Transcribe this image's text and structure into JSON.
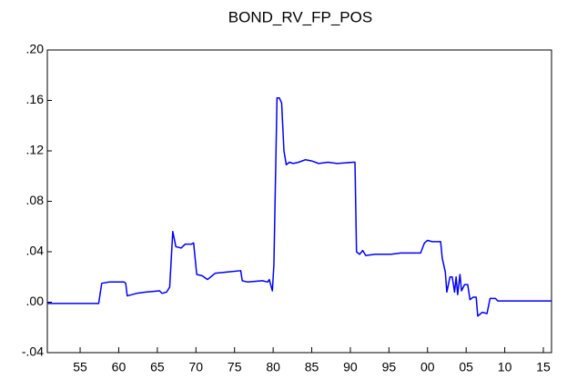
{
  "chart_data": {
    "type": "line",
    "title": "BOND_RV_FP_POS",
    "color": "#0000ff",
    "x": [
      1950.75,
      1957.4,
      1957.8,
      1958.8,
      1960.7,
      1960.9,
      1961.1,
      1962.3,
      1963.5,
      1965.3,
      1965.6,
      1966.2,
      1966.6,
      1967.0,
      1967.4,
      1968.1,
      1968.6,
      1969.4,
      1969.7,
      1970.1,
      1970.8,
      1971.5,
      1972.1,
      1972.5,
      1974.1,
      1975.8,
      1976.0,
      1976.7,
      1978.6,
      1979.3,
      1979.5,
      1979.9,
      1980.1,
      1980.5,
      1980.8,
      1981.1,
      1981.4,
      1981.7,
      1982.1,
      1982.6,
      1983.3,
      1984.2,
      1985.0,
      1985.9,
      1987.1,
      1988.3,
      1990.4,
      1990.6,
      1990.8,
      1991.2,
      1991.6,
      1992.0,
      1993.2,
      1995.3,
      1996.5,
      1999.1,
      1999.6,
      2000.0,
      2000.6,
      2001.7,
      2001.9,
      2002.3,
      2002.5,
      2002.9,
      2003.2,
      2003.5,
      2003.7,
      2003.9,
      2004.2,
      2004.4,
      2004.8,
      2005.2,
      2005.5,
      2005.9,
      2006.3,
      2006.5,
      2007.1,
      2007.7,
      2008.1,
      2008.8,
      2009.1,
      2016.06
    ],
    "values": [
      -0.001,
      -0.001,
      0.015,
      0.016,
      0.016,
      0.015,
      0.005,
      0.007,
      0.008,
      0.009,
      0.007,
      0.008,
      0.012,
      0.056,
      0.044,
      0.043,
      0.046,
      0.046,
      0.047,
      0.022,
      0.021,
      0.018,
      0.021,
      0.023,
      0.024,
      0.025,
      0.017,
      0.016,
      0.017,
      0.016,
      0.018,
      0.009,
      0.03,
      0.162,
      0.162,
      0.158,
      0.12,
      0.109,
      0.111,
      0.11,
      0.111,
      0.113,
      0.112,
      0.11,
      0.111,
      0.11,
      0.111,
      0.111,
      0.04,
      0.038,
      0.041,
      0.037,
      0.038,
      0.038,
      0.039,
      0.039,
      0.047,
      0.049,
      0.048,
      0.048,
      0.035,
      0.024,
      0.008,
      0.02,
      0.02,
      0.008,
      0.02,
      0.006,
      0.022,
      0.009,
      0.014,
      0.014,
      0.002,
      0.004,
      0.004,
      -0.011,
      -0.008,
      -0.009,
      0.003,
      0.003,
      0.001,
      0.001
    ],
    "xlim": [
      1950.75,
      2016.06
    ],
    "xticks": [
      {
        "value": 1955,
        "label": "55"
      },
      {
        "value": 1960,
        "label": "60"
      },
      {
        "value": 1965,
        "label": "65"
      },
      {
        "value": 1970,
        "label": "70"
      },
      {
        "value": 1975,
        "label": "75"
      },
      {
        "value": 1980,
        "label": "80"
      },
      {
        "value": 1985,
        "label": "85"
      },
      {
        "value": 1990,
        "label": "90"
      },
      {
        "value": 1995,
        "label": "95"
      },
      {
        "value": 2000,
        "label": "00"
      },
      {
        "value": 2005,
        "label": "05"
      },
      {
        "value": 2010,
        "label": "10"
      },
      {
        "value": 2015,
        "label": "15"
      }
    ],
    "ylim": [
      -0.04,
      0.2
    ],
    "yticks": [
      {
        "value": -0.04,
        "label": "-.04"
      },
      {
        "value": 0,
        "label": ".00"
      },
      {
        "value": 0.04,
        "label": ".04"
      },
      {
        "value": 0.08,
        "label": ".08"
      },
      {
        "value": 0.12,
        "label": ".12"
      },
      {
        "value": 0.16,
        "label": ".16"
      },
      {
        "value": 0.2,
        "label": ".20"
      }
    ]
  }
}
